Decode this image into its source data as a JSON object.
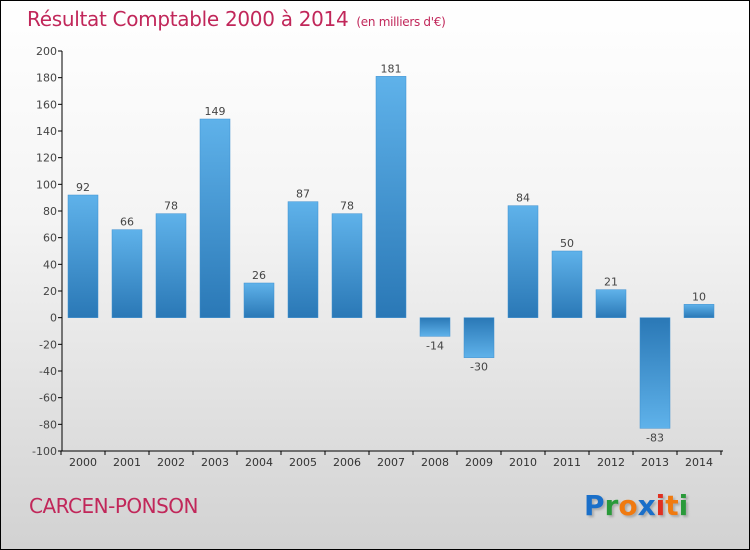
{
  "chart_data": {
    "type": "bar",
    "title": "Résultat Comptable 2000 à 2014",
    "unit": "(en milliers d'€)",
    "categories": [
      "2000",
      "2001",
      "2002",
      "2003",
      "2004",
      "2005",
      "2006",
      "2007",
      "2008",
      "2009",
      "2010",
      "2011",
      "2012",
      "2013",
      "2014"
    ],
    "values": [
      92,
      66,
      78,
      149,
      26,
      87,
      78,
      181,
      -14,
      -30,
      84,
      50,
      21,
      -83,
      10
    ],
    "ylim": [
      -100,
      200
    ],
    "yticks": [
      -100,
      -80,
      -60,
      -40,
      -20,
      0,
      20,
      40,
      60,
      80,
      100,
      120,
      140,
      160,
      180,
      200
    ],
    "xlabel": "",
    "ylabel": "",
    "grid": false
  },
  "town": "CARCEN-PONSON",
  "logo": {
    "letters": [
      "P",
      "r",
      "o",
      "x",
      "i",
      "t",
      "i"
    ],
    "colors": [
      "#1a6fc9",
      "#2a9a3a",
      "#f07a10",
      "#1a6fc9",
      "#e03020",
      "#f07a10",
      "#2a9a3a"
    ]
  },
  "colors": {
    "bar_light": "#5aaee8",
    "bar_dark": "#2a7ab8",
    "title": "#c1275a"
  }
}
